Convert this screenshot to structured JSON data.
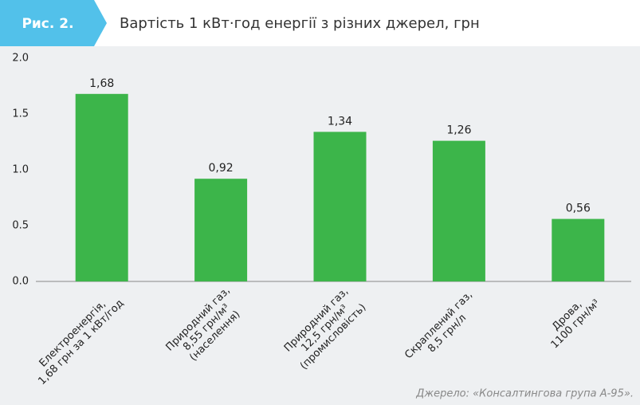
{
  "chart_data": {
    "type": "bar",
    "figure_label": "Рис. 2.",
    "title": "Вартість 1 кВт·год енергії з різних джерел, грн",
    "categories": [
      "Електроенергія,\n1,68 грн за 1 кВт/год",
      "Природний газ,\n8,55 грн/м³\n(населення)",
      "Природний газ,\n12,5 грн/м³\n(промисловість)",
      "Скраплений газ,\n8,5 грн/л",
      "Дрова,\n1100 грн/м³"
    ],
    "values": [
      1.68,
      0.92,
      1.34,
      1.26,
      0.56
    ],
    "value_labels": [
      "1,68",
      "0,92",
      "1,34",
      "1,26",
      "0,56"
    ],
    "color": "#3cb54a",
    "ylim": [
      0,
      2
    ],
    "yticks": [
      {
        "value": 0,
        "label": "0.0"
      },
      {
        "value": 0.5,
        "label": "0.5"
      },
      {
        "value": 1,
        "label": "1.0"
      },
      {
        "value": 1.5,
        "label": "1.5"
      },
      {
        "value": 2,
        "label": "2.0"
      }
    ],
    "grid": false,
    "source": "Джерело: «Консалтингова група А-95»."
  }
}
